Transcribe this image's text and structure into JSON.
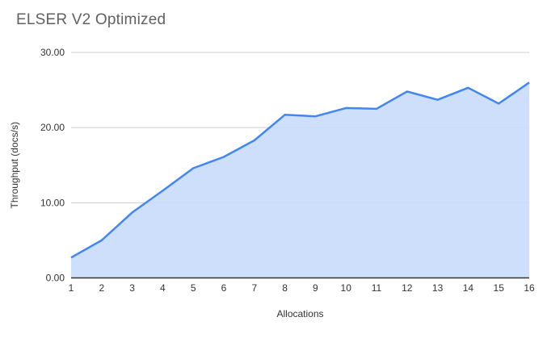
{
  "chart": {
    "title": "ELSER V2 Optimized",
    "title_color": "#616161",
    "background_color": "#ffffff"
  },
  "chart_data": {
    "type": "area",
    "title": "ELSER V2 Optimized",
    "xlabel": "Allocations",
    "ylabel": "Throughput (docs/s)",
    "x": [
      1,
      2,
      3,
      4,
      5,
      6,
      7,
      8,
      9,
      10,
      11,
      12,
      13,
      14,
      15,
      16
    ],
    "x_tick_labels": [
      "1",
      "2",
      "3",
      "4",
      "5",
      "6",
      "7",
      "8",
      "9",
      "10",
      "11",
      "12",
      "13",
      "14",
      "15",
      "16"
    ],
    "values": [
      2.7,
      5.0,
      8.7,
      11.6,
      14.6,
      16.1,
      18.3,
      21.7,
      21.5,
      22.6,
      22.5,
      24.8,
      23.7,
      25.3,
      23.2,
      26.0
    ],
    "ylim": [
      0,
      30
    ],
    "xlim": [
      1,
      16
    ],
    "y_ticks": [
      0,
      10,
      20,
      30
    ],
    "y_tick_labels": [
      "0.00",
      "10.00",
      "20.00",
      "30.00"
    ],
    "grid": true,
    "legend": "none",
    "line_color": "#4285f4",
    "fill_color": "#c9dbfb",
    "gridline_color": "#cccccc",
    "axis_line_color": "#333333",
    "tick_label_color": "#333333",
    "axis_title_color": "#333333"
  }
}
